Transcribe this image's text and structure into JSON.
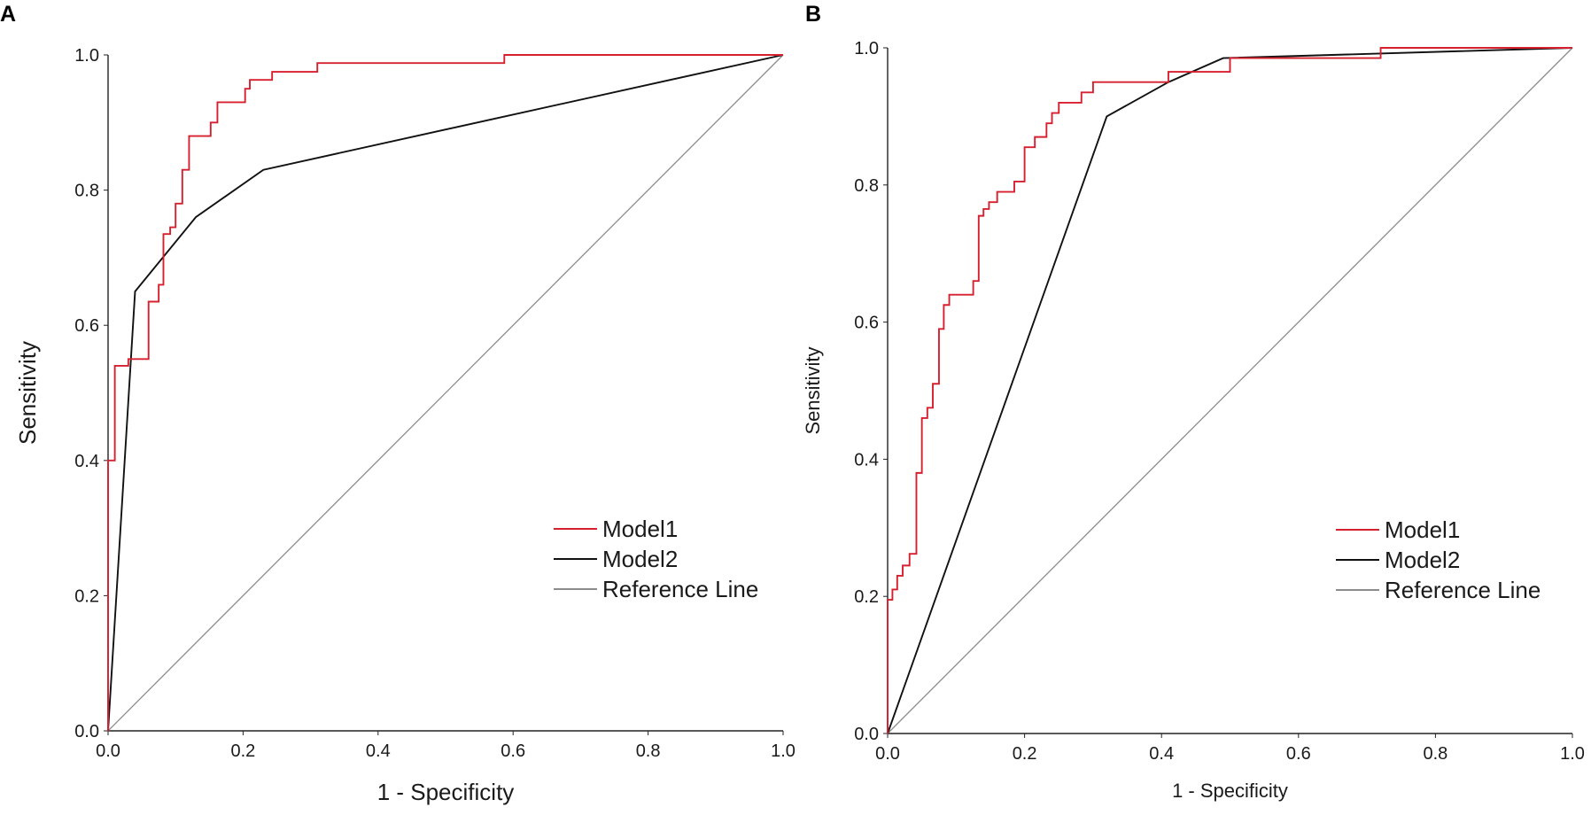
{
  "chart_data": [
    {
      "panel": "A",
      "type": "line",
      "subtype": "roc",
      "title": "",
      "xlabel": "1 - Specificity",
      "ylabel": "Sensitivity",
      "xlim": [
        0,
        1
      ],
      "ylim": [
        0,
        1
      ],
      "xticks": [
        "0.0",
        "0.2",
        "0.4",
        "0.6",
        "0.8",
        "1.0"
      ],
      "yticks": [
        "0.0",
        "0.2",
        "0.4",
        "0.6",
        "0.8",
        "1.0"
      ],
      "grid": false,
      "legend_position": "bottom-right",
      "series": [
        {
          "name": "Model1",
          "color": "#d6202f",
          "step": true,
          "points": [
            [
              0,
              0
            ],
            [
              0,
              0.4
            ],
            [
              0.01,
              0.4
            ],
            [
              0.01,
              0.54
            ],
            [
              0.03,
              0.54
            ],
            [
              0.03,
              0.55
            ],
            [
              0.06,
              0.55
            ],
            [
              0.06,
              0.635
            ],
            [
              0.075,
              0.635
            ],
            [
              0.075,
              0.66
            ],
            [
              0.082,
              0.66
            ],
            [
              0.082,
              0.735
            ],
            [
              0.092,
              0.735
            ],
            [
              0.092,
              0.745
            ],
            [
              0.1,
              0.745
            ],
            [
              0.1,
              0.78
            ],
            [
              0.11,
              0.78
            ],
            [
              0.11,
              0.83
            ],
            [
              0.12,
              0.83
            ],
            [
              0.12,
              0.88
            ],
            [
              0.152,
              0.88
            ],
            [
              0.152,
              0.9
            ],
            [
              0.162,
              0.9
            ],
            [
              0.162,
              0.93
            ],
            [
              0.203,
              0.93
            ],
            [
              0.203,
              0.95
            ],
            [
              0.21,
              0.95
            ],
            [
              0.21,
              0.963
            ],
            [
              0.243,
              0.963
            ],
            [
              0.243,
              0.975
            ],
            [
              0.31,
              0.975
            ],
            [
              0.31,
              0.988
            ],
            [
              0.587,
              0.988
            ],
            [
              0.587,
              1.0
            ],
            [
              1.0,
              1.0
            ]
          ]
        },
        {
          "name": "Model2",
          "color": "#111111",
          "step": false,
          "points": [
            [
              0,
              0
            ],
            [
              0.04,
              0.65
            ],
            [
              0.13,
              0.76
            ],
            [
              0.23,
              0.83
            ],
            [
              1.0,
              1.0
            ]
          ]
        },
        {
          "name": "Reference Line",
          "color": "#8c8c8c",
          "step": false,
          "points": [
            [
              0,
              0
            ],
            [
              1,
              1
            ]
          ]
        }
      ]
    },
    {
      "panel": "B",
      "type": "line",
      "subtype": "roc",
      "title": "",
      "xlabel": "1 - Specificity",
      "ylabel": "Sensitivity",
      "xlim": [
        0,
        1
      ],
      "ylim": [
        0,
        1
      ],
      "xticks": [
        "0.0",
        "0.2",
        "0.4",
        "0.6",
        "0.8",
        "1.0"
      ],
      "yticks": [
        "0.0",
        "0.2",
        "0.4",
        "0.6",
        "0.8",
        "1.0"
      ],
      "grid": false,
      "legend_position": "bottom-right",
      "series": [
        {
          "name": "Model1",
          "color": "#d6202f",
          "step": true,
          "points": [
            [
              0,
              0
            ],
            [
              0,
              0.195
            ],
            [
              0.007,
              0.195
            ],
            [
              0.007,
              0.21
            ],
            [
              0.014,
              0.21
            ],
            [
              0.014,
              0.23
            ],
            [
              0.022,
              0.23
            ],
            [
              0.022,
              0.245
            ],
            [
              0.032,
              0.245
            ],
            [
              0.032,
              0.262
            ],
            [
              0.042,
              0.262
            ],
            [
              0.042,
              0.38
            ],
            [
              0.05,
              0.38
            ],
            [
              0.05,
              0.46
            ],
            [
              0.058,
              0.46
            ],
            [
              0.058,
              0.475
            ],
            [
              0.066,
              0.475
            ],
            [
              0.066,
              0.51
            ],
            [
              0.075,
              0.51
            ],
            [
              0.075,
              0.59
            ],
            [
              0.082,
              0.59
            ],
            [
              0.082,
              0.625
            ],
            [
              0.09,
              0.625
            ],
            [
              0.09,
              0.64
            ],
            [
              0.125,
              0.64
            ],
            [
              0.125,
              0.66
            ],
            [
              0.133,
              0.66
            ],
            [
              0.133,
              0.755
            ],
            [
              0.14,
              0.755
            ],
            [
              0.14,
              0.765
            ],
            [
              0.148,
              0.765
            ],
            [
              0.148,
              0.775
            ],
            [
              0.16,
              0.775
            ],
            [
              0.16,
              0.79
            ],
            [
              0.185,
              0.79
            ],
            [
              0.185,
              0.805
            ],
            [
              0.2,
              0.805
            ],
            [
              0.2,
              0.855
            ],
            [
              0.215,
              0.855
            ],
            [
              0.215,
              0.87
            ],
            [
              0.232,
              0.87
            ],
            [
              0.232,
              0.89
            ],
            [
              0.24,
              0.89
            ],
            [
              0.24,
              0.905
            ],
            [
              0.25,
              0.905
            ],
            [
              0.25,
              0.92
            ],
            [
              0.283,
              0.92
            ],
            [
              0.283,
              0.935
            ],
            [
              0.3,
              0.935
            ],
            [
              0.3,
              0.95
            ],
            [
              0.41,
              0.95
            ],
            [
              0.41,
              0.965
            ],
            [
              0.5,
              0.965
            ],
            [
              0.5,
              0.985
            ],
            [
              0.72,
              0.985
            ],
            [
              0.72,
              1.0
            ],
            [
              1.0,
              1.0
            ]
          ]
        },
        {
          "name": "Model2",
          "color": "#111111",
          "step": false,
          "points": [
            [
              0,
              0
            ],
            [
              0.32,
              0.9
            ],
            [
              0.41,
              0.95
            ],
            [
              0.49,
              0.985
            ],
            [
              1.0,
              1.0
            ]
          ]
        },
        {
          "name": "Reference Line",
          "color": "#8c8c8c",
          "step": false,
          "points": [
            [
              0,
              0
            ],
            [
              1,
              1
            ]
          ]
        }
      ]
    }
  ]
}
